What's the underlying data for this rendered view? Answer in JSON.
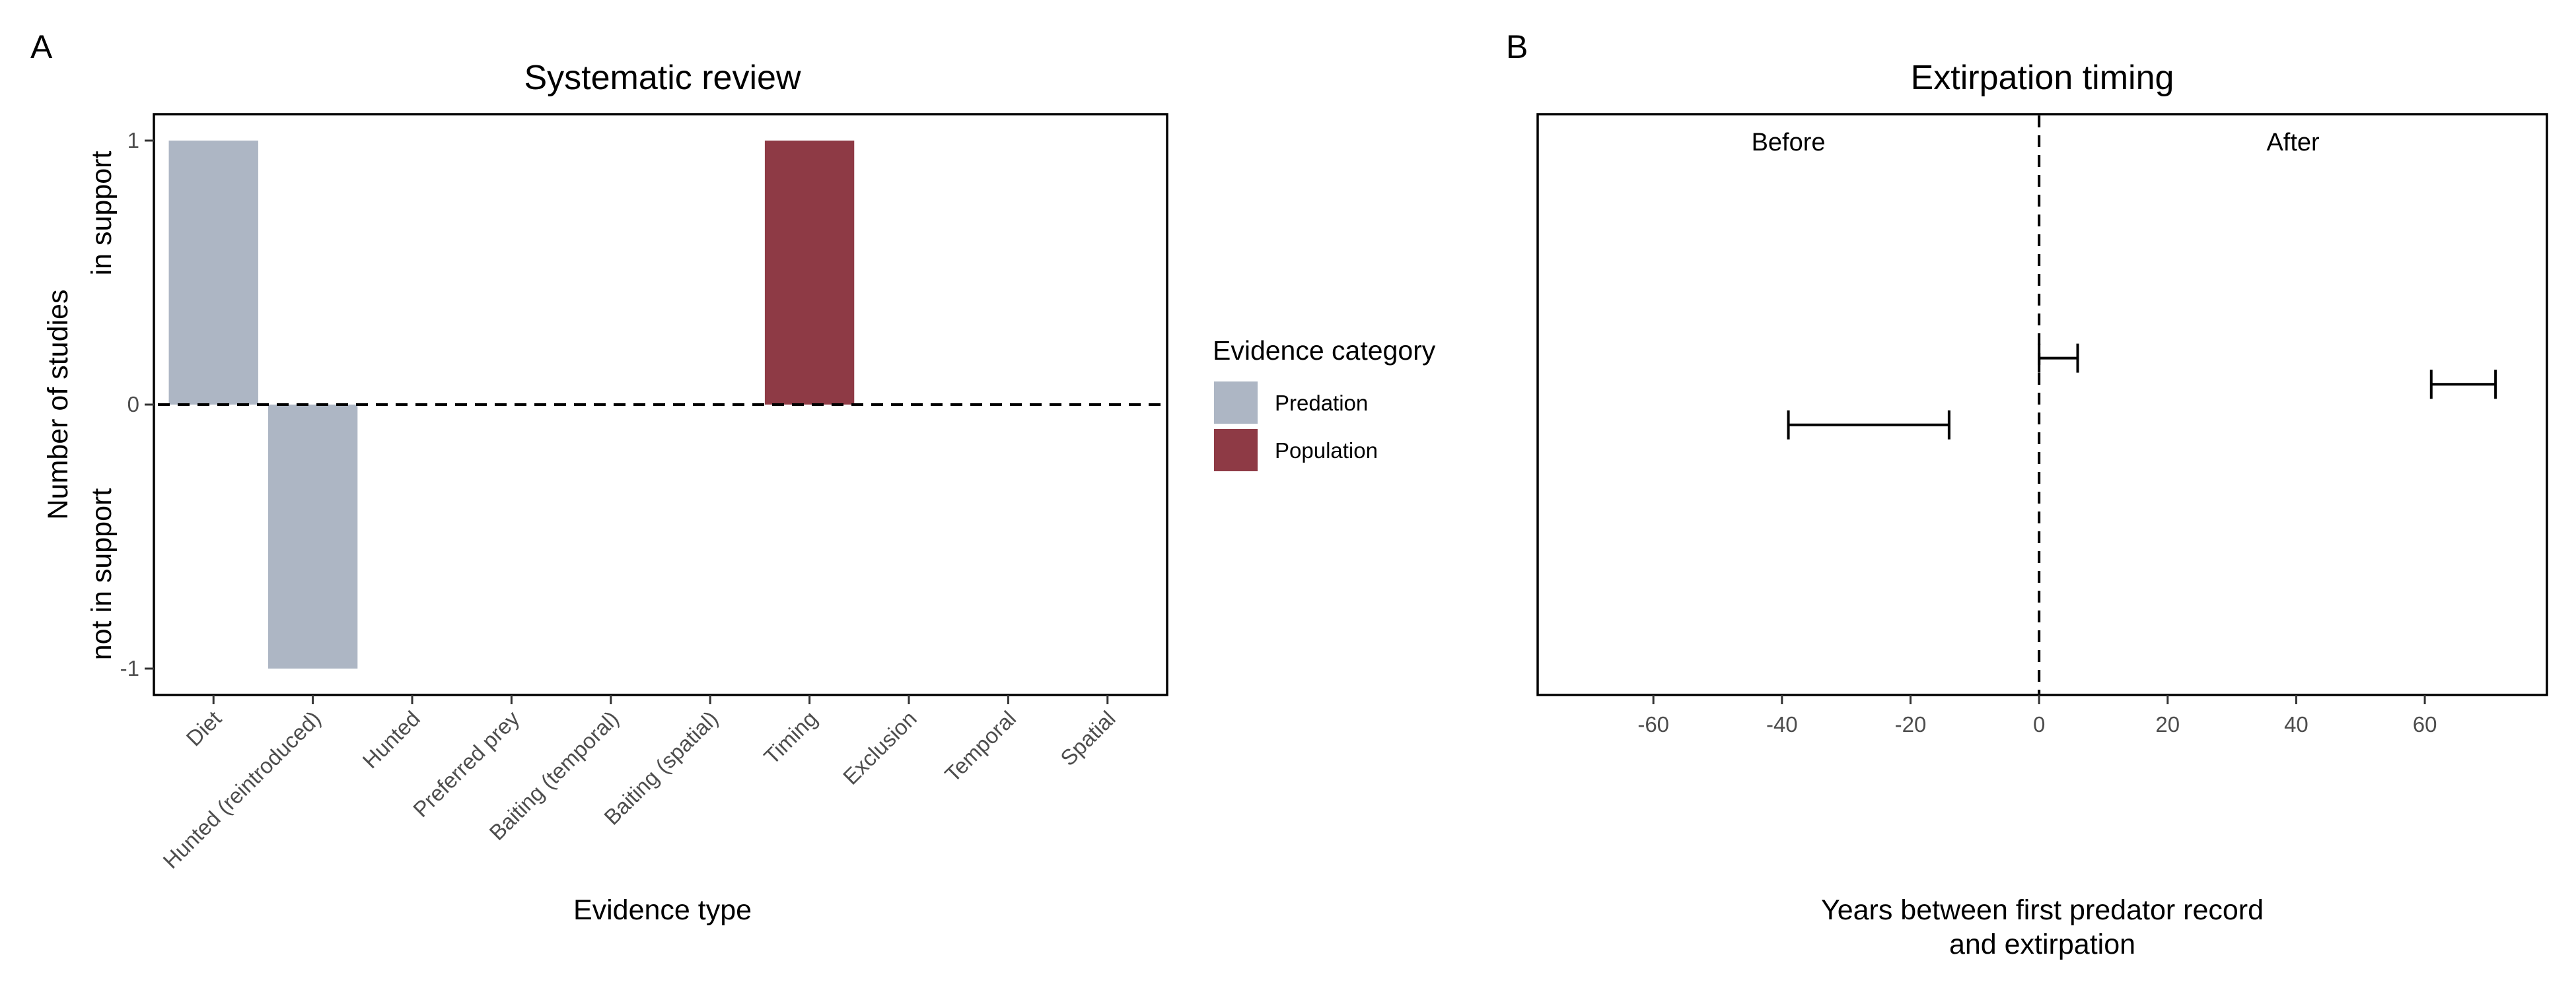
{
  "chart_data": [
    {
      "panel": "A",
      "type": "bar",
      "title": "Systematic review",
      "xlabel": "Evidence type",
      "ylabel_lines": [
        "Number of studies",
        "not in support",
        "in support"
      ],
      "ylim": [
        -1.1,
        1.1
      ],
      "yticks": [
        -1,
        0,
        1
      ],
      "categories": [
        "Diet",
        "Hunted (reintroduced)",
        "Hunted",
        "Preferred prey",
        "Baiting (temporal)",
        "Baiting (spatial)",
        "Timing",
        "Exclusion",
        "Temporal",
        "Spatial"
      ],
      "series": [
        {
          "name": "Predation",
          "color": "#ADB6C4",
          "values": [
            1,
            -1,
            0,
            0,
            0,
            0,
            0,
            0,
            0,
            0
          ]
        },
        {
          "name": "Population",
          "color": "#8E3A45",
          "values": [
            0,
            0,
            0,
            0,
            0,
            0,
            1,
            0,
            0,
            0
          ]
        }
      ],
      "reference_line": 0,
      "legend": {
        "title": "Evidence category",
        "placement": "right",
        "items": [
          {
            "label": "Predation",
            "color": "#ADB6C4"
          },
          {
            "label": "Population",
            "color": "#8E3A45"
          }
        ]
      }
    },
    {
      "panel": "B",
      "type": "interval",
      "title": "Extirpation timing",
      "xlabel_lines": [
        "Years between first predator record",
        "and extirpation"
      ],
      "xlim": [
        -78,
        79
      ],
      "xticks": [
        -60,
        -40,
        -20,
        0,
        20,
        40,
        60
      ],
      "ylim": [
        0,
        1
      ],
      "reference_line": 0,
      "region_labels": [
        "Before",
        "After"
      ],
      "intervals": [
        {
          "start": 0,
          "end": 6,
          "y": 0.58
        },
        {
          "start": 61,
          "end": 71,
          "y": 0.535
        },
        {
          "start": -39,
          "end": -14,
          "y": 0.465
        }
      ]
    }
  ]
}
